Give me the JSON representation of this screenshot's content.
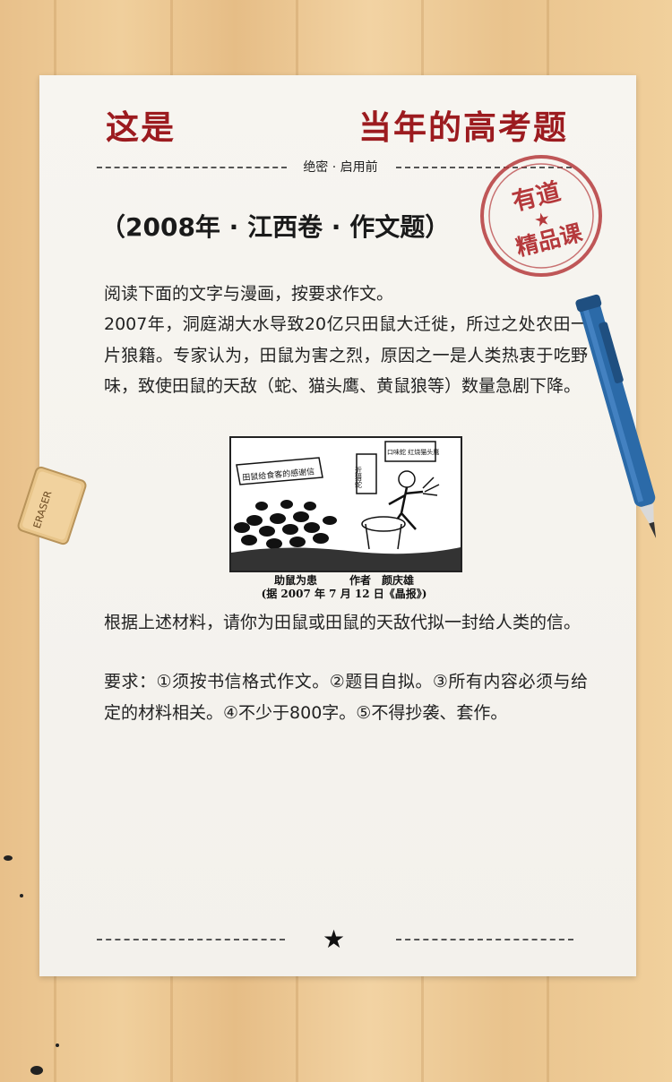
{
  "header": {
    "title_left": "这是",
    "title_right": "当年的高考题",
    "secret_label": "绝密 · 启用前"
  },
  "stamp": {
    "line1": "有道",
    "line2": "精品课"
  },
  "question": {
    "heading": "（2008年 · 江西卷 · 作文题）",
    "intro": "阅读下面的文字与漫画，按要求作文。",
    "material": "2007年，洞庭湖大水导致20亿只田鼠大迁徙，所过之处农田一片狼籍。专家认为，田鼠为害之烈，原因之一是人类热衷于吃野味，致使田鼠的天敌（蛇、猫头鹰、黄鼠狼等）数量急剧下降。",
    "task": "根据上述材料，请你为田鼠或田鼠的天敌代拟一封给人类的信。",
    "requirements": "要求：①须按书信格式作文。②题目自拟。③所有内容必须与给定的材料相关。④不少于800字。⑤不得抄袭、套作。"
  },
  "cartoon": {
    "banner_text": "田鼠给食客的感谢信",
    "sign_left": "近猎蛇",
    "sign_right": "口味蛇 红烧猫头鹰",
    "caption_line1": "助鼠为患　　　作者　颜庆雄",
    "caption_line2": "(据 2007 年 7 月 12 日《晶报》)"
  },
  "eraser": {
    "label": "ERASER"
  },
  "footer": {
    "star_glyph": "★"
  },
  "colors": {
    "title_red": "#9c1b1f",
    "stamp_red": "#b5393c",
    "pen_blue": "#2b6aa8"
  }
}
